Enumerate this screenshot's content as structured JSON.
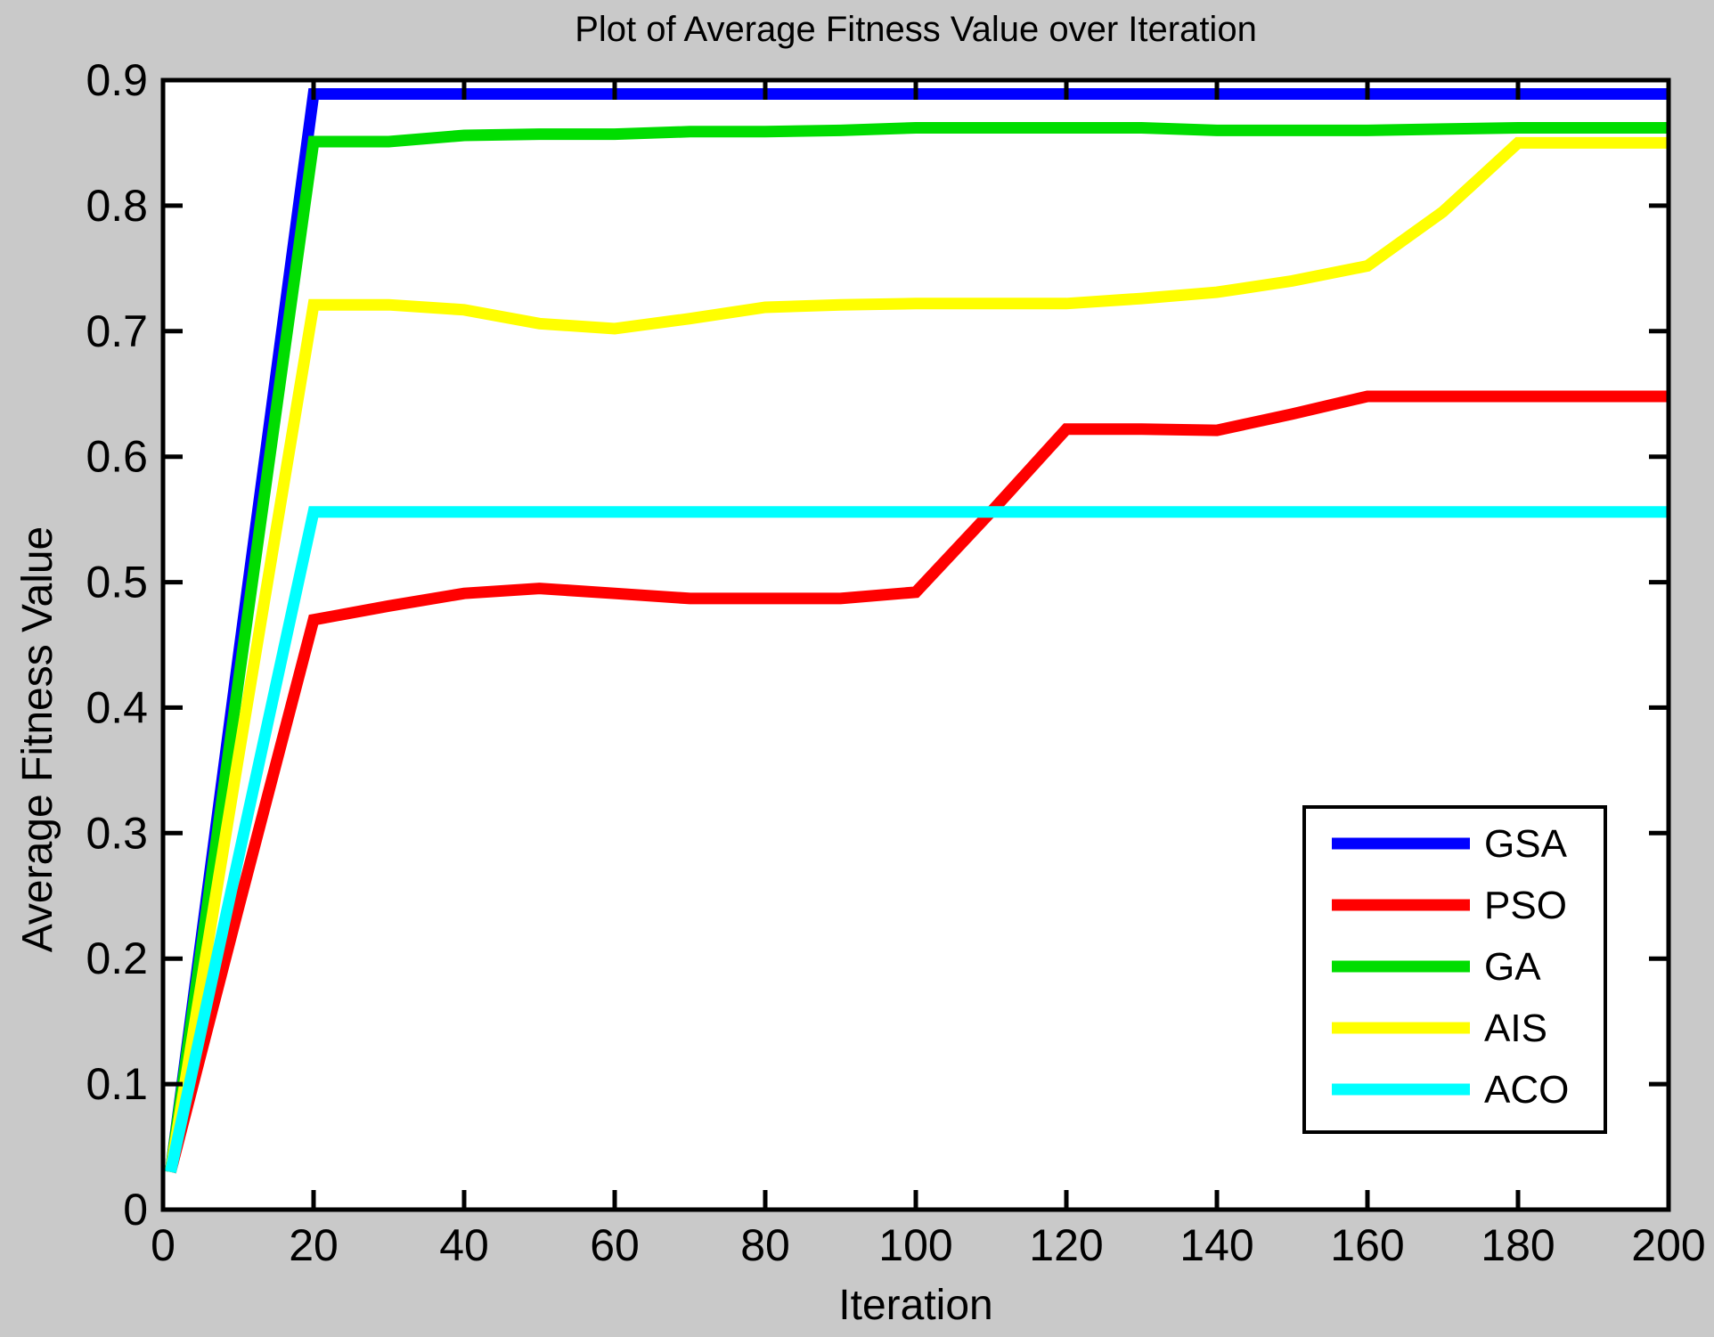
{
  "figure": {
    "background_color": "#c9c9c9",
    "plot_background_color": "#ffffff",
    "axis_color": "#000000"
  },
  "chart_data": {
    "type": "line",
    "title": "Plot of Average Fitness Value over Iteration",
    "xlabel": "Iteration",
    "ylabel": "Average Fitness Value",
    "xlim": [
      0,
      200
    ],
    "ylim": [
      0,
      0.9
    ],
    "grid": false,
    "legend_position": "lower right",
    "xticks": [
      0,
      20,
      40,
      60,
      80,
      100,
      120,
      140,
      160,
      180,
      200
    ],
    "xtick_labels": [
      "0",
      "20",
      "40",
      "60",
      "80",
      "100",
      "120",
      "140",
      "160",
      "180",
      "200"
    ],
    "ytick_values": [
      0,
      0.1,
      0.2,
      0.3,
      0.4,
      0.5,
      0.6,
      0.7,
      0.8,
      0.9
    ],
    "ytick_labels": [
      "0",
      "0.1",
      "0.2",
      "0.3",
      "0.4",
      "0.5",
      "0.6",
      "0.7",
      "0.8",
      "0.9"
    ],
    "x": [
      1,
      10,
      20,
      30,
      40,
      50,
      60,
      70,
      80,
      90,
      100,
      110,
      120,
      130,
      140,
      150,
      160,
      170,
      180,
      190,
      200
    ],
    "series": [
      {
        "name": "GSA",
        "color": "#0000ff",
        "values": [
          0.03,
          0.44,
          0.889,
          0.889,
          0.889,
          0.889,
          0.889,
          0.889,
          0.889,
          0.889,
          0.889,
          0.889,
          0.889,
          0.889,
          0.889,
          0.889,
          0.889,
          0.889,
          0.889,
          0.889,
          0.889
        ]
      },
      {
        "name": "PSO",
        "color": "#ff0000",
        "values": [
          0.03,
          0.24,
          0.47,
          0.481,
          0.491,
          0.495,
          0.491,
          0.487,
          0.487,
          0.487,
          0.492,
          0.556,
          0.622,
          0.622,
          0.621,
          0.634,
          0.648,
          0.648,
          0.648,
          0.648,
          0.648
        ]
      },
      {
        "name": "GA",
        "color": "#00dd00",
        "values": [
          0.03,
          0.42,
          0.851,
          0.851,
          0.856,
          0.857,
          0.857,
          0.859,
          0.859,
          0.86,
          0.862,
          0.862,
          0.862,
          0.862,
          0.86,
          0.86,
          0.86,
          0.861,
          0.862,
          0.862,
          0.862
        ]
      },
      {
        "name": "AIS",
        "color": "#ffff00",
        "values": [
          0.03,
          0.36,
          0.721,
          0.721,
          0.717,
          0.706,
          0.702,
          0.71,
          0.719,
          0.721,
          0.722,
          0.722,
          0.722,
          0.726,
          0.731,
          0.74,
          0.752,
          0.795,
          0.85,
          0.85,
          0.85
        ]
      },
      {
        "name": "ACO",
        "color": "#00ffff",
        "values": [
          0.03,
          0.28,
          0.556,
          0.556,
          0.556,
          0.556,
          0.556,
          0.556,
          0.556,
          0.556,
          0.556,
          0.556,
          0.556,
          0.556,
          0.556,
          0.556,
          0.556,
          0.556,
          0.556,
          0.556,
          0.556
        ]
      }
    ],
    "legend_entries": [
      "GSA",
      "PSO",
      "GA",
      "AIS",
      "ACO"
    ]
  }
}
